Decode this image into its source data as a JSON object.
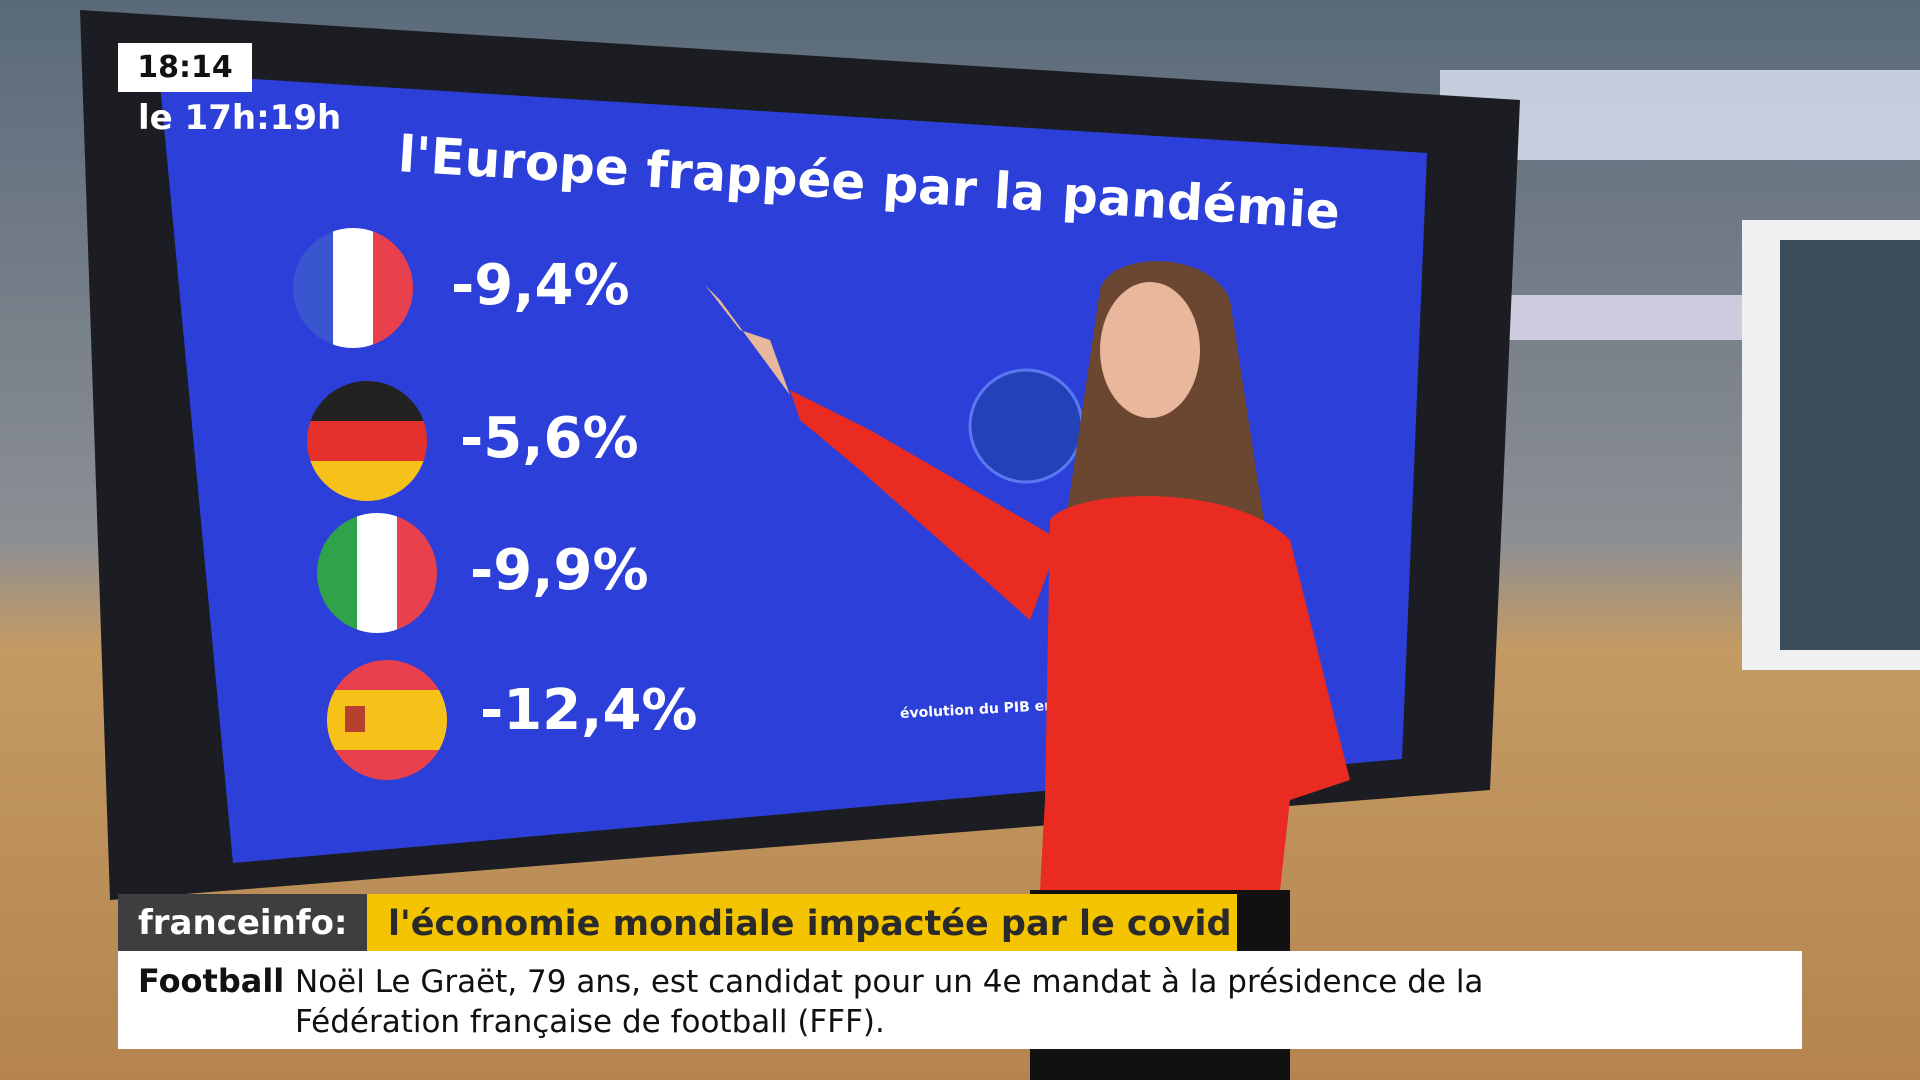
{
  "clock": {
    "time": "18:14",
    "slot": "le 17h:19h"
  },
  "screen": {
    "title": "l'Europe frappée par la pandémie",
    "rows": [
      {
        "value": "-9,4%"
      },
      {
        "value": "-5,6%"
      },
      {
        "value": "-9,9%"
      },
      {
        "value": "-12,4%"
      }
    ],
    "footnote": "évolution du PIB en"
  },
  "banner": {
    "brand": "franceinfo:",
    "headline": "l'économie mondiale impactée par le covid"
  },
  "ticker": {
    "category": "Football",
    "lines": [
      "Noël Le Graët, 79 ans, est candidat pour un 4e mandat à la présidence de la",
      "Fédération française de football (FFF)."
    ]
  }
}
